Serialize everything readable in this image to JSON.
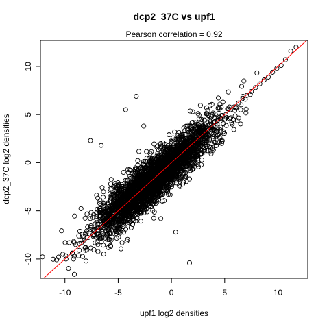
{
  "chart_data": {
    "type": "scatter",
    "title": "dcp2_37C vs upf1",
    "subtitle": "Pearson correlation =  0.92",
    "xlabel": "upf1 log2 densities",
    "ylabel": "dcp2_37C log2 densities",
    "xlim": [
      -12.3,
      12.8
    ],
    "ylim": [
      -12.0,
      12.7
    ],
    "xticks": [
      -10,
      -5,
      0,
      5,
      10
    ],
    "yticks": [
      -10,
      -5,
      0,
      5,
      10
    ],
    "fit_line": {
      "intercept": 0.0,
      "slope": 1.0,
      "color": "#ff0000"
    },
    "point_color": "#000000",
    "pearson_correlation": 0.92,
    "sample_points": {
      "x": [
        -10.6,
        -10.2,
        -9.9,
        -9.6,
        -9.3,
        -9.0,
        -8.7,
        -8.4,
        -8.0,
        -7.6,
        -7.3,
        -7.0,
        -7.3,
        -6.6,
        -6.1,
        -5.8,
        -5.3,
        -4.9,
        -4.5,
        -4.1,
        -3.7,
        -3.3,
        -2.9,
        -2.5,
        -2.1,
        -1.7,
        -1.3,
        -0.9,
        -0.5,
        -0.1,
        0.3,
        0.7,
        1.1,
        1.5,
        1.9,
        2.3,
        2.7,
        3.1,
        3.5,
        3.9,
        4.3,
        4.7,
        5.1,
        5.5,
        5.9,
        6.3,
        6.7,
        7.1,
        7.5,
        7.9,
        8.3,
        8.7,
        9.1,
        9.5,
        9.9,
        10.3,
        10.7,
        11.2,
        11.7,
        1.7,
        -4.3,
        -3.3,
        2.5,
        3.3,
        -6.6,
        -7.6,
        -9.2,
        6.8,
        -1.0,
        2.0,
        4.1,
        -2.6,
        0.4,
        7.4,
        -5.7,
        5.7
      ],
      "y": [
        -9.8,
        -9.5,
        -10.0,
        -8.3,
        -9.4,
        -8.5,
        -7.6,
        -8.0,
        -7.3,
        -6.9,
        -7.1,
        -6.4,
        -5.4,
        -5.8,
        -5.5,
        -4.9,
        -4.6,
        -4.3,
        -3.9,
        -3.5,
        -3.1,
        -2.9,
        -2.5,
        -2.0,
        -1.7,
        -1.4,
        -1.0,
        -0.6,
        -0.4,
        0.0,
        0.3,
        0.8,
        1.0,
        1.4,
        1.8,
        2.2,
        2.6,
        3.1,
        3.5,
        3.8,
        4.3,
        4.6,
        5.0,
        5.5,
        5.8,
        6.2,
        6.7,
        7.0,
        7.4,
        7.8,
        8.2,
        8.6,
        8.9,
        9.4,
        9.8,
        10.1,
        10.7,
        11.6,
        12.0,
        -10.4,
        5.5,
        6.9,
        5.1,
        5.7,
        1.8,
        2.3,
        -10.0,
        8.5,
        -5.8,
        5.3,
        2.1,
        3.8,
        -7.2,
        7.1,
        -8.7,
        4.0
      ]
    }
  }
}
